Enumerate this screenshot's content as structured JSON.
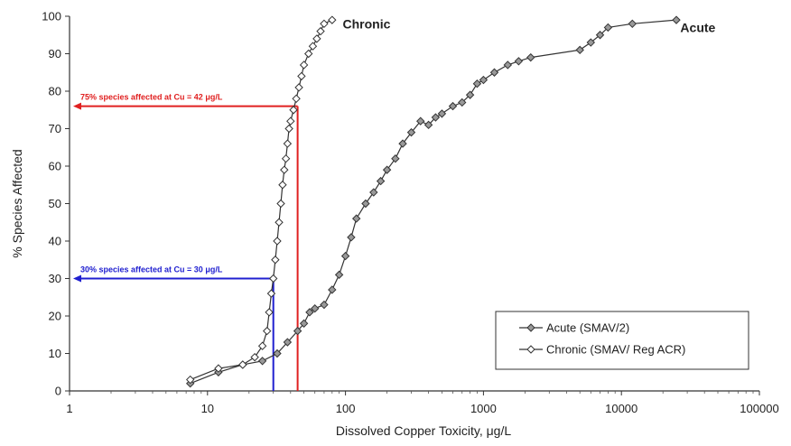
{
  "chart_data": {
    "type": "scatter",
    "xlabel": "Dissolved Copper Toxicity, μg/L",
    "ylabel": "% Species Affected",
    "xscale": "log",
    "xlim": [
      1,
      100000
    ],
    "ylim": [
      0,
      100
    ],
    "x_ticks": [
      "1",
      "10",
      "100",
      "1000",
      "10000",
      "100000"
    ],
    "y_ticks": [
      "0",
      "10",
      "20",
      "30",
      "40",
      "50",
      "60",
      "70",
      "80",
      "90",
      "100"
    ],
    "grid": false,
    "legend": {
      "placement": "bottom-right",
      "entries": [
        "Acute (SMAV/2)",
        "Chronic (SMAV/ Reg ACR)"
      ]
    },
    "curve_labels": [
      {
        "text": "Chronic",
        "x": 150,
        "y": 98
      },
      {
        "text": "Acute",
        "x": 42000,
        "y": 97
      }
    ],
    "annotations": [
      {
        "text": "75% species affected at Cu = 42 μg/L",
        "x": 42,
        "y": 76,
        "color": "#e02020"
      },
      {
        "text": "30% species affected at Cu = 30 μg/L",
        "x": 30,
        "y": 30,
        "color": "#2020d0"
      }
    ],
    "series": [
      {
        "name": "Acute (SMAV/2)",
        "marker": "diamond",
        "points": [
          [
            7.5,
            2
          ],
          [
            12,
            5
          ],
          [
            18,
            7
          ],
          [
            25,
            8
          ],
          [
            32,
            10
          ],
          [
            38,
            13
          ],
          [
            45,
            16
          ],
          [
            50,
            18
          ],
          [
            55,
            21
          ],
          [
            60,
            22
          ],
          [
            70,
            23
          ],
          [
            80,
            27
          ],
          [
            90,
            31
          ],
          [
            100,
            36
          ],
          [
            110,
            41
          ],
          [
            120,
            46
          ],
          [
            140,
            50
          ],
          [
            160,
            53
          ],
          [
            180,
            56
          ],
          [
            200,
            59
          ],
          [
            230,
            62
          ],
          [
            260,
            66
          ],
          [
            300,
            69
          ],
          [
            350,
            72
          ],
          [
            400,
            71
          ],
          [
            450,
            73
          ],
          [
            500,
            74
          ],
          [
            600,
            76
          ],
          [
            700,
            77
          ],
          [
            800,
            79
          ],
          [
            900,
            82
          ],
          [
            1000,
            83
          ],
          [
            1200,
            85
          ],
          [
            1500,
            87
          ],
          [
            1800,
            88
          ],
          [
            2200,
            89
          ],
          [
            5000,
            91
          ],
          [
            6000,
            93
          ],
          [
            7000,
            95
          ],
          [
            8000,
            97
          ],
          [
            12000,
            98
          ],
          [
            25000,
            99
          ]
        ]
      },
      {
        "name": "Chronic (SMAV/ Reg ACR)",
        "marker": "open-diamond",
        "points": [
          [
            7.5,
            3
          ],
          [
            12,
            6
          ],
          [
            18,
            7
          ],
          [
            22,
            9
          ],
          [
            25,
            12
          ],
          [
            27,
            16
          ],
          [
            28,
            21
          ],
          [
            29,
            26
          ],
          [
            30,
            30
          ],
          [
            31,
            35
          ],
          [
            32,
            40
          ],
          [
            33,
            45
          ],
          [
            34,
            50
          ],
          [
            35,
            55
          ],
          [
            36,
            59
          ],
          [
            37,
            62
          ],
          [
            38,
            66
          ],
          [
            39,
            70
          ],
          [
            40,
            72
          ],
          [
            42,
            75
          ],
          [
            44,
            78
          ],
          [
            46,
            81
          ],
          [
            48,
            84
          ],
          [
            50,
            87
          ],
          [
            54,
            90
          ],
          [
            58,
            92
          ],
          [
            62,
            94
          ],
          [
            66,
            96
          ],
          [
            70,
            98
          ],
          [
            80,
            99
          ]
        ]
      }
    ]
  }
}
